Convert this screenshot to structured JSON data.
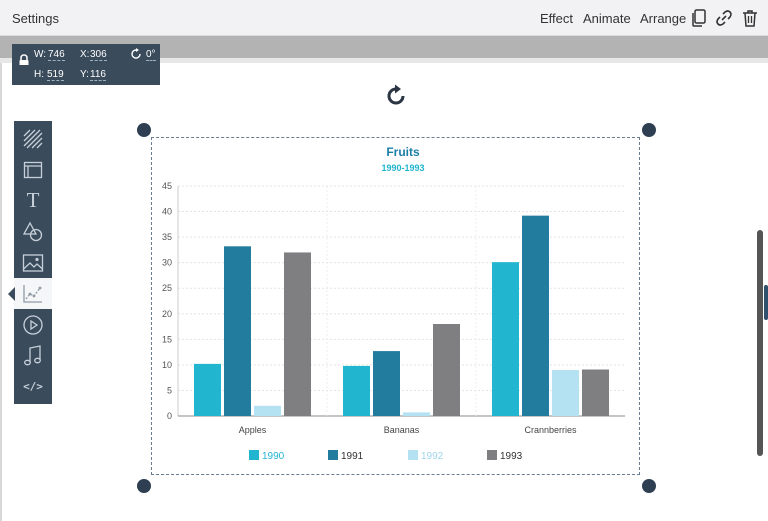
{
  "topbar": {
    "title": "Settings",
    "menu": [
      "Effect",
      "Animate",
      "Arrange"
    ],
    "icons": [
      "copy-icon",
      "link-icon",
      "trash-icon"
    ]
  },
  "dimensions": {
    "w_label": "W:",
    "w_value": "746",
    "x_label": "X:",
    "x_value": "306",
    "h_label": "H:",
    "h_value": "519",
    "y_label": "Y:",
    "y_value": "116",
    "rotation": "0°",
    "icons": [
      "lock-icon",
      "rotate-icon"
    ]
  },
  "toolbox": {
    "tools": [
      "pattern",
      "layout",
      "text",
      "shapes",
      "image",
      "chart",
      "video",
      "audio",
      "code"
    ],
    "active": "chart",
    "code_label": "</>",
    "text_label": "T"
  },
  "chart_data": {
    "type": "bar",
    "title": "Fruits",
    "subtitle": "1990-1993",
    "categories": [
      "Apples",
      "Bananas",
      "Crannberries"
    ],
    "series": [
      {
        "name": "1990",
        "values": [
          10.2,
          9.8,
          30.1
        ],
        "color": "#22b5cf"
      },
      {
        "name": "1991",
        "values": [
          33.2,
          12.7,
          39.2
        ],
        "color": "#217c9e"
      },
      {
        "name": "1992",
        "values": [
          2.0,
          0.7,
          9.0
        ],
        "color": "#b5e2f2"
      },
      {
        "name": "1993",
        "values": [
          32.0,
          18.0,
          9.1
        ],
        "color": "#7f7f82"
      }
    ],
    "ylim": [
      0,
      45
    ],
    "yticks": [
      0,
      5,
      10,
      15,
      20,
      25,
      30,
      35,
      40,
      45
    ],
    "legend_position": "bottom",
    "title_color": "#1a7fa8",
    "subtitle_color": "#22b5cf"
  }
}
